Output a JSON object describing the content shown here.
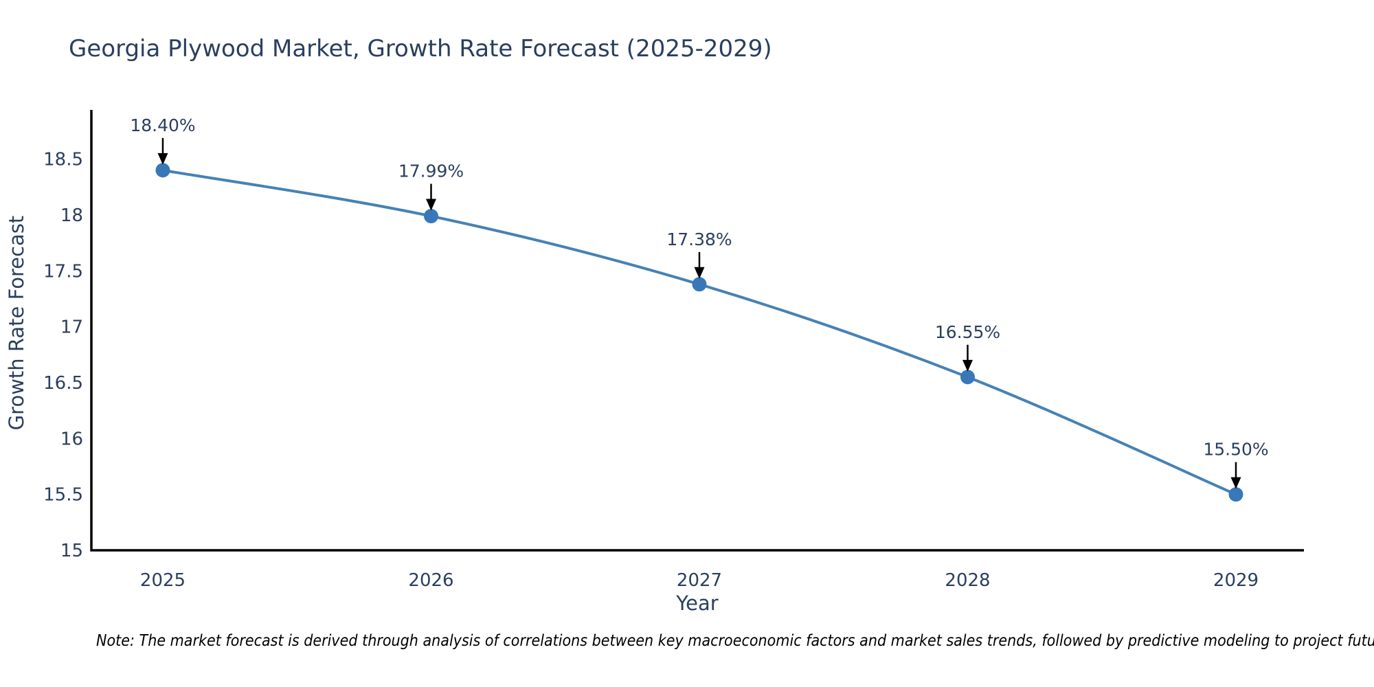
{
  "chart": {
    "title": "Georgia Plywood Market, Growth Rate Forecast (2025-2029)",
    "xlabel": "Year",
    "ylabel": "Growth Rate Forecast",
    "footnote": "Note: The market forecast is derived through analysis of correlations between key macroeconomic factors and market sales trends, followed by predictive modeling to project future sales"
  },
  "chart_data": {
    "type": "line",
    "title": "Georgia Plywood Market, Growth Rate Forecast (2025-2029)",
    "xlabel": "Year",
    "ylabel": "Growth Rate Forecast",
    "x": [
      2025,
      2026,
      2027,
      2028,
      2029
    ],
    "series": [
      {
        "name": "Growth Rate Forecast",
        "values": [
          18.4,
          17.99,
          17.38,
          16.55,
          15.5
        ]
      }
    ],
    "point_labels": [
      "18.40%",
      "17.99%",
      "17.38%",
      "16.55%",
      "15.50%"
    ],
    "x_ticklabels": [
      "2025",
      "2026",
      "2027",
      "2028",
      "2029"
    ],
    "y_ticks": [
      15,
      15.5,
      16,
      16.5,
      17,
      17.5,
      18,
      18.5
    ],
    "ylim": [
      15,
      18.94
    ],
    "grid": false,
    "legend": false,
    "line_shape": "spline",
    "marker": "circle",
    "annotations_arrow": true,
    "colors": {
      "line": "#4682b4",
      "marker": "#3878b8",
      "arrow": "#000000",
      "axis": "#000000",
      "text": "#2a3f5f",
      "note_text": "#000000",
      "background": "#ffffff"
    }
  }
}
